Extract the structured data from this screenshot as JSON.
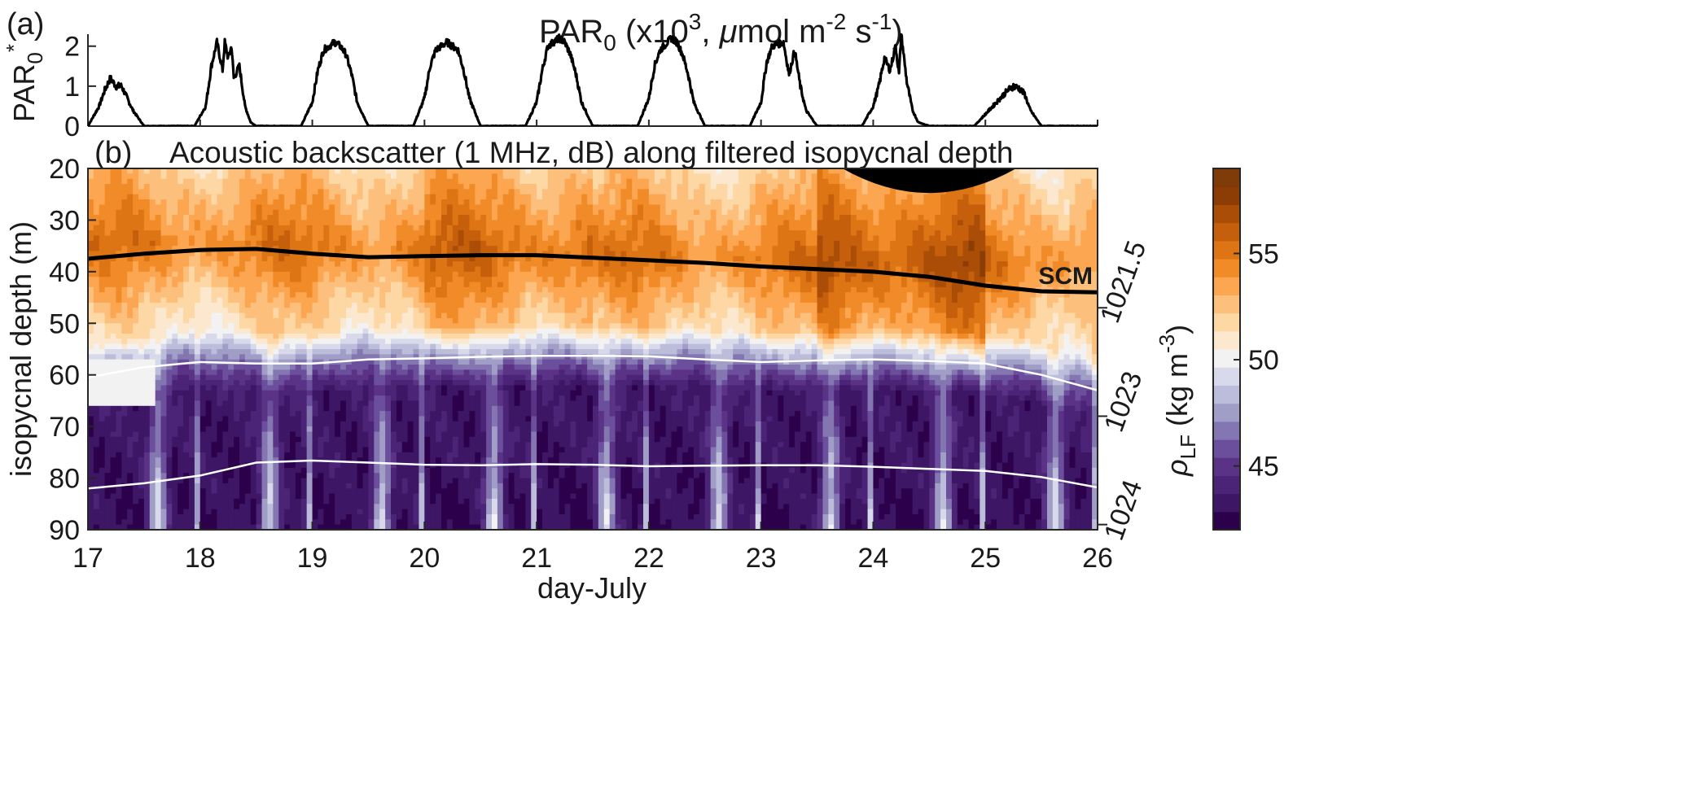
{
  "colors": {
    "axis": "#262626",
    "par_line": "#000000",
    "scm_line": "#000000",
    "isopycnal_line": "#ffffff",
    "mask": "#000000",
    "colormap": [
      "#2d004b",
      "#3d1665",
      "#4c2477",
      "#5a3286",
      "#6b4e9c",
      "#8476b0",
      "#a09dc7",
      "#bcbdda",
      "#d8daeb",
      "#f2f2f2",
      "#fbe8cf",
      "#fdd7a4",
      "#fdc07c",
      "#fca651",
      "#f18b28",
      "#de7514",
      "#c65f0b",
      "#aa4d07",
      "#8c3c05",
      "#7f3b08"
    ]
  },
  "panel_a": {
    "label": "(a)",
    "title_main": "PAR",
    "title_sub": "0",
    "title_open": " (x10",
    "title_exp": "3",
    "title_units_mu": "μ",
    "title_units_a": "mol m",
    "title_exp_m": "-2",
    "title_units_s": " s",
    "title_exp_s": "-1",
    "title_close": ")",
    "ylabel_main": "PAR",
    "ylabel_sub": "0",
    "ylabel_sup": "*"
  },
  "panel_b": {
    "label": "(b)",
    "title": "Acoustic backscatter (1 MHz, dB) along filtered isopycnal depth",
    "ylabel": "isopycnal depth (m)",
    "xlabel": "day-July",
    "scm_label": "SCM",
    "right_axis_label_main": "ρ",
    "right_axis_label_sub": "LF",
    "right_axis_label_units": " (kg m",
    "right_axis_label_exp": "-3",
    "right_axis_label_close": ")"
  },
  "chart_data": [
    {
      "type": "line",
      "panel": "a",
      "xlim": [
        17,
        26
      ],
      "ylim": [
        0,
        2.3
      ],
      "yticks": [
        "0",
        "1",
        "2"
      ],
      "series": [
        {
          "x": [
            17.0,
            17.1,
            17.15,
            17.2,
            17.25,
            17.3,
            17.4,
            17.5,
            17.95,
            18.05,
            18.1,
            18.15,
            18.2,
            18.22,
            18.25,
            18.28,
            18.3,
            18.35,
            18.4,
            18.45,
            18.5,
            18.9,
            19.0,
            19.05,
            19.1,
            19.2,
            19.25,
            19.3,
            19.35,
            19.4,
            19.5,
            19.9,
            20.0,
            20.05,
            20.1,
            20.2,
            20.25,
            20.3,
            20.35,
            20.4,
            20.5,
            20.9,
            21.0,
            21.05,
            21.1,
            21.2,
            21.25,
            21.3,
            21.35,
            21.4,
            21.5,
            21.9,
            22.0,
            22.05,
            22.1,
            22.2,
            22.25,
            22.3,
            22.35,
            22.4,
            22.5,
            22.9,
            23.0,
            23.05,
            23.1,
            23.2,
            23.25,
            23.3,
            23.35,
            23.4,
            23.5,
            23.9,
            24.0,
            24.05,
            24.1,
            24.15,
            24.2,
            24.23,
            24.25,
            24.3,
            24.35,
            24.4,
            24.5,
            24.9,
            25.0,
            25.1,
            25.2,
            25.25,
            25.3,
            25.35,
            25.4,
            25.5,
            26.0
          ],
          "y": [
            0,
            0.5,
            0.9,
            1.2,
            1.0,
            1.0,
            0.4,
            0,
            0,
            0.5,
            1.5,
            2.1,
            1.4,
            2.1,
            1.7,
            2.0,
            1.2,
            1.5,
            0.5,
            0.1,
            0,
            0,
            0.6,
            1.4,
            1.9,
            2.1,
            2.0,
            1.8,
            1.3,
            0.6,
            0,
            0,
            0.7,
            1.5,
            1.9,
            2.1,
            2.0,
            1.9,
            1.4,
            0.7,
            0,
            0,
            0.6,
            1.4,
            2.0,
            2.2,
            2.1,
            1.8,
            1.3,
            0.6,
            0,
            0,
            0.7,
            1.5,
            1.9,
            2.2,
            2.1,
            1.8,
            1.3,
            0.6,
            0,
            0,
            0.6,
            1.6,
            2.0,
            2.1,
            1.3,
            1.9,
            1.0,
            0.4,
            0,
            0,
            0.5,
            1.0,
            1.7,
            1.4,
            2.0,
            1.3,
            2.3,
            1.1,
            0.4,
            0.1,
            0,
            0,
            0.3,
            0.6,
            0.9,
            1.0,
            0.95,
            0.8,
            0.4,
            0,
            0
          ]
        }
      ]
    },
    {
      "type": "heatmap",
      "panel": "b",
      "xlim": [
        17,
        26
      ],
      "xticks": [
        "17",
        "18",
        "19",
        "20",
        "21",
        "22",
        "23",
        "24",
        "25",
        "26"
      ],
      "ylim": [
        20,
        90
      ],
      "yticks": [
        "20",
        "30",
        "40",
        "50",
        "60",
        "70",
        "80",
        "90"
      ],
      "colorbar_ticks": [
        "45",
        "50",
        "55"
      ],
      "clim": [
        42,
        59
      ],
      "right_axis_ticks": [
        {
          "label": "1021.5",
          "depth": 47
        },
        {
          "label": "1023",
          "depth": 68
        },
        {
          "label": "1024",
          "depth": 89
        }
      ],
      "scm_line": {
        "x": [
          17,
          17.5,
          18,
          18.5,
          19,
          19.5,
          20,
          20.5,
          21,
          21.5,
          22,
          22.5,
          23,
          23.5,
          24,
          24.5,
          25,
          25.5,
          26
        ],
        "y": [
          37.5,
          36.5,
          35.8,
          35.6,
          36.5,
          37.2,
          37.0,
          36.8,
          36.8,
          37.3,
          37.8,
          38.3,
          39.0,
          39.5,
          40.0,
          41.0,
          42.7,
          43.8,
          44.0
        ]
      },
      "isopycnal_upper": {
        "x": [
          17,
          17.5,
          18,
          18.5,
          19,
          19.5,
          20,
          20.5,
          21,
          21.5,
          22,
          22.5,
          23,
          23.5,
          24,
          24.5,
          25,
          25.5,
          26
        ],
        "y": [
          60.5,
          58.5,
          57.5,
          57.8,
          57.8,
          57.0,
          56.8,
          56.5,
          56.3,
          56.3,
          56.4,
          57.0,
          57.5,
          57.2,
          57.0,
          57.3,
          57.8,
          60.0,
          63.0
        ]
      },
      "isopycnal_lower": {
        "x": [
          17,
          17.5,
          18,
          18.5,
          19,
          19.5,
          20,
          20.5,
          21,
          21.5,
          22,
          22.5,
          23,
          23.5,
          24,
          24.5,
          25,
          25.5,
          26
        ],
        "y": [
          82.0,
          81.0,
          79.5,
          77.0,
          76.6,
          77.0,
          77.4,
          77.5,
          77.3,
          77.4,
          77.7,
          77.6,
          77.5,
          77.5,
          77.8,
          78.2,
          78.6,
          79.8,
          81.8
        ]
      },
      "mask_region": {
        "x_start": 23.7,
        "x_end": 25.3,
        "y_top": 20,
        "y_bottom": 27
      }
    }
  ]
}
